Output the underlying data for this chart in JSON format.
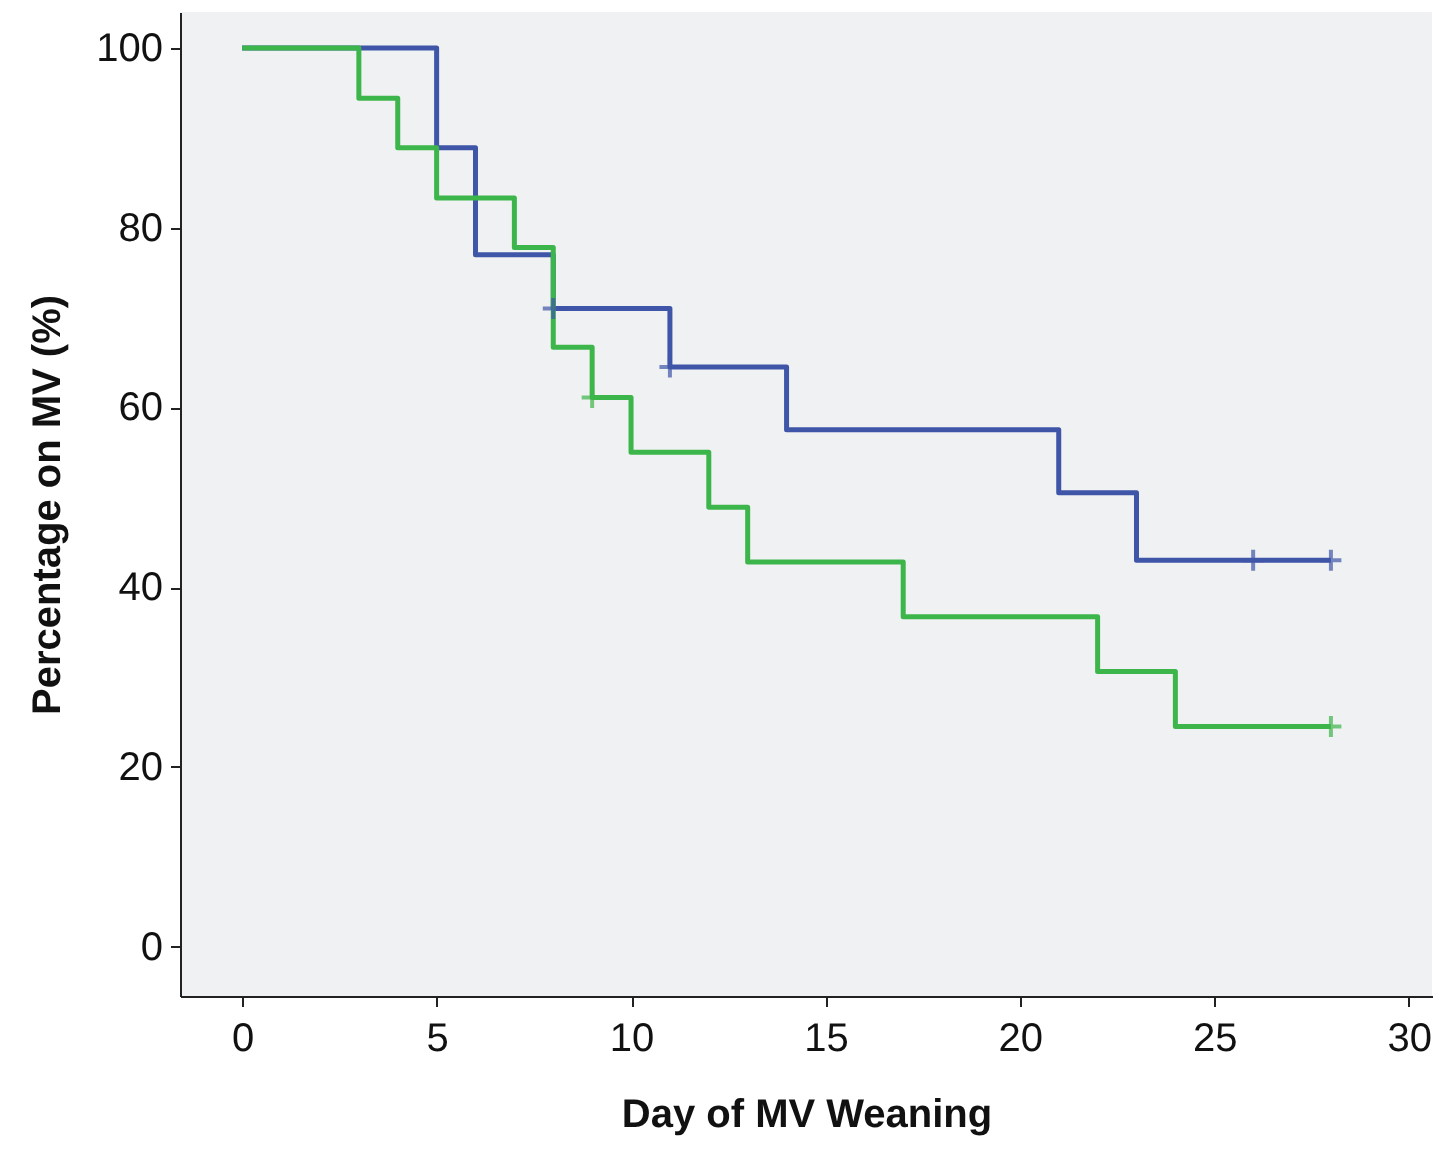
{
  "chart_data": {
    "type": "step",
    "xlabel": "Day of MV Weaning",
    "ylabel": "Percentage on MV (%)",
    "xlim": [
      -1.6,
      30.6
    ],
    "ylim": [
      -5.5,
      104
    ],
    "xticks": [
      0,
      5,
      10,
      15,
      20,
      25,
      30
    ],
    "yticks": [
      0,
      20,
      40,
      60,
      80,
      100
    ],
    "grid": false,
    "marker": "none",
    "line_style": "solid",
    "series": [
      {
        "color": "#3f55a8",
        "x": [
          0,
          5,
          6,
          8,
          11,
          14,
          21,
          23,
          28
        ],
        "values": [
          100,
          88.9,
          77,
          71,
          64.5,
          57.5,
          50.5,
          43,
          43
        ]
      },
      {
        "color": "#3cb54a",
        "x": [
          0,
          3,
          4,
          5,
          7,
          8,
          9,
          10,
          12,
          13,
          17,
          22,
          24,
          28
        ],
        "values": [
          100,
          94.4,
          88.9,
          83.3,
          77.8,
          66.7,
          61.1,
          55,
          48.9,
          42.8,
          36.7,
          30.6,
          24.5,
          24.5
        ]
      },
      {
        "type": "scatter",
        "marker": "cross",
        "color": "#3f55a8",
        "x": [
          8,
          11,
          26,
          28
        ],
        "values": [
          71,
          64.5,
          43,
          43
        ]
      },
      {
        "type": "scatter",
        "marker": "cross",
        "color": "#3cb54a",
        "x": [
          9,
          28
        ],
        "values": [
          61.1,
          24.5
        ]
      }
    ]
  }
}
